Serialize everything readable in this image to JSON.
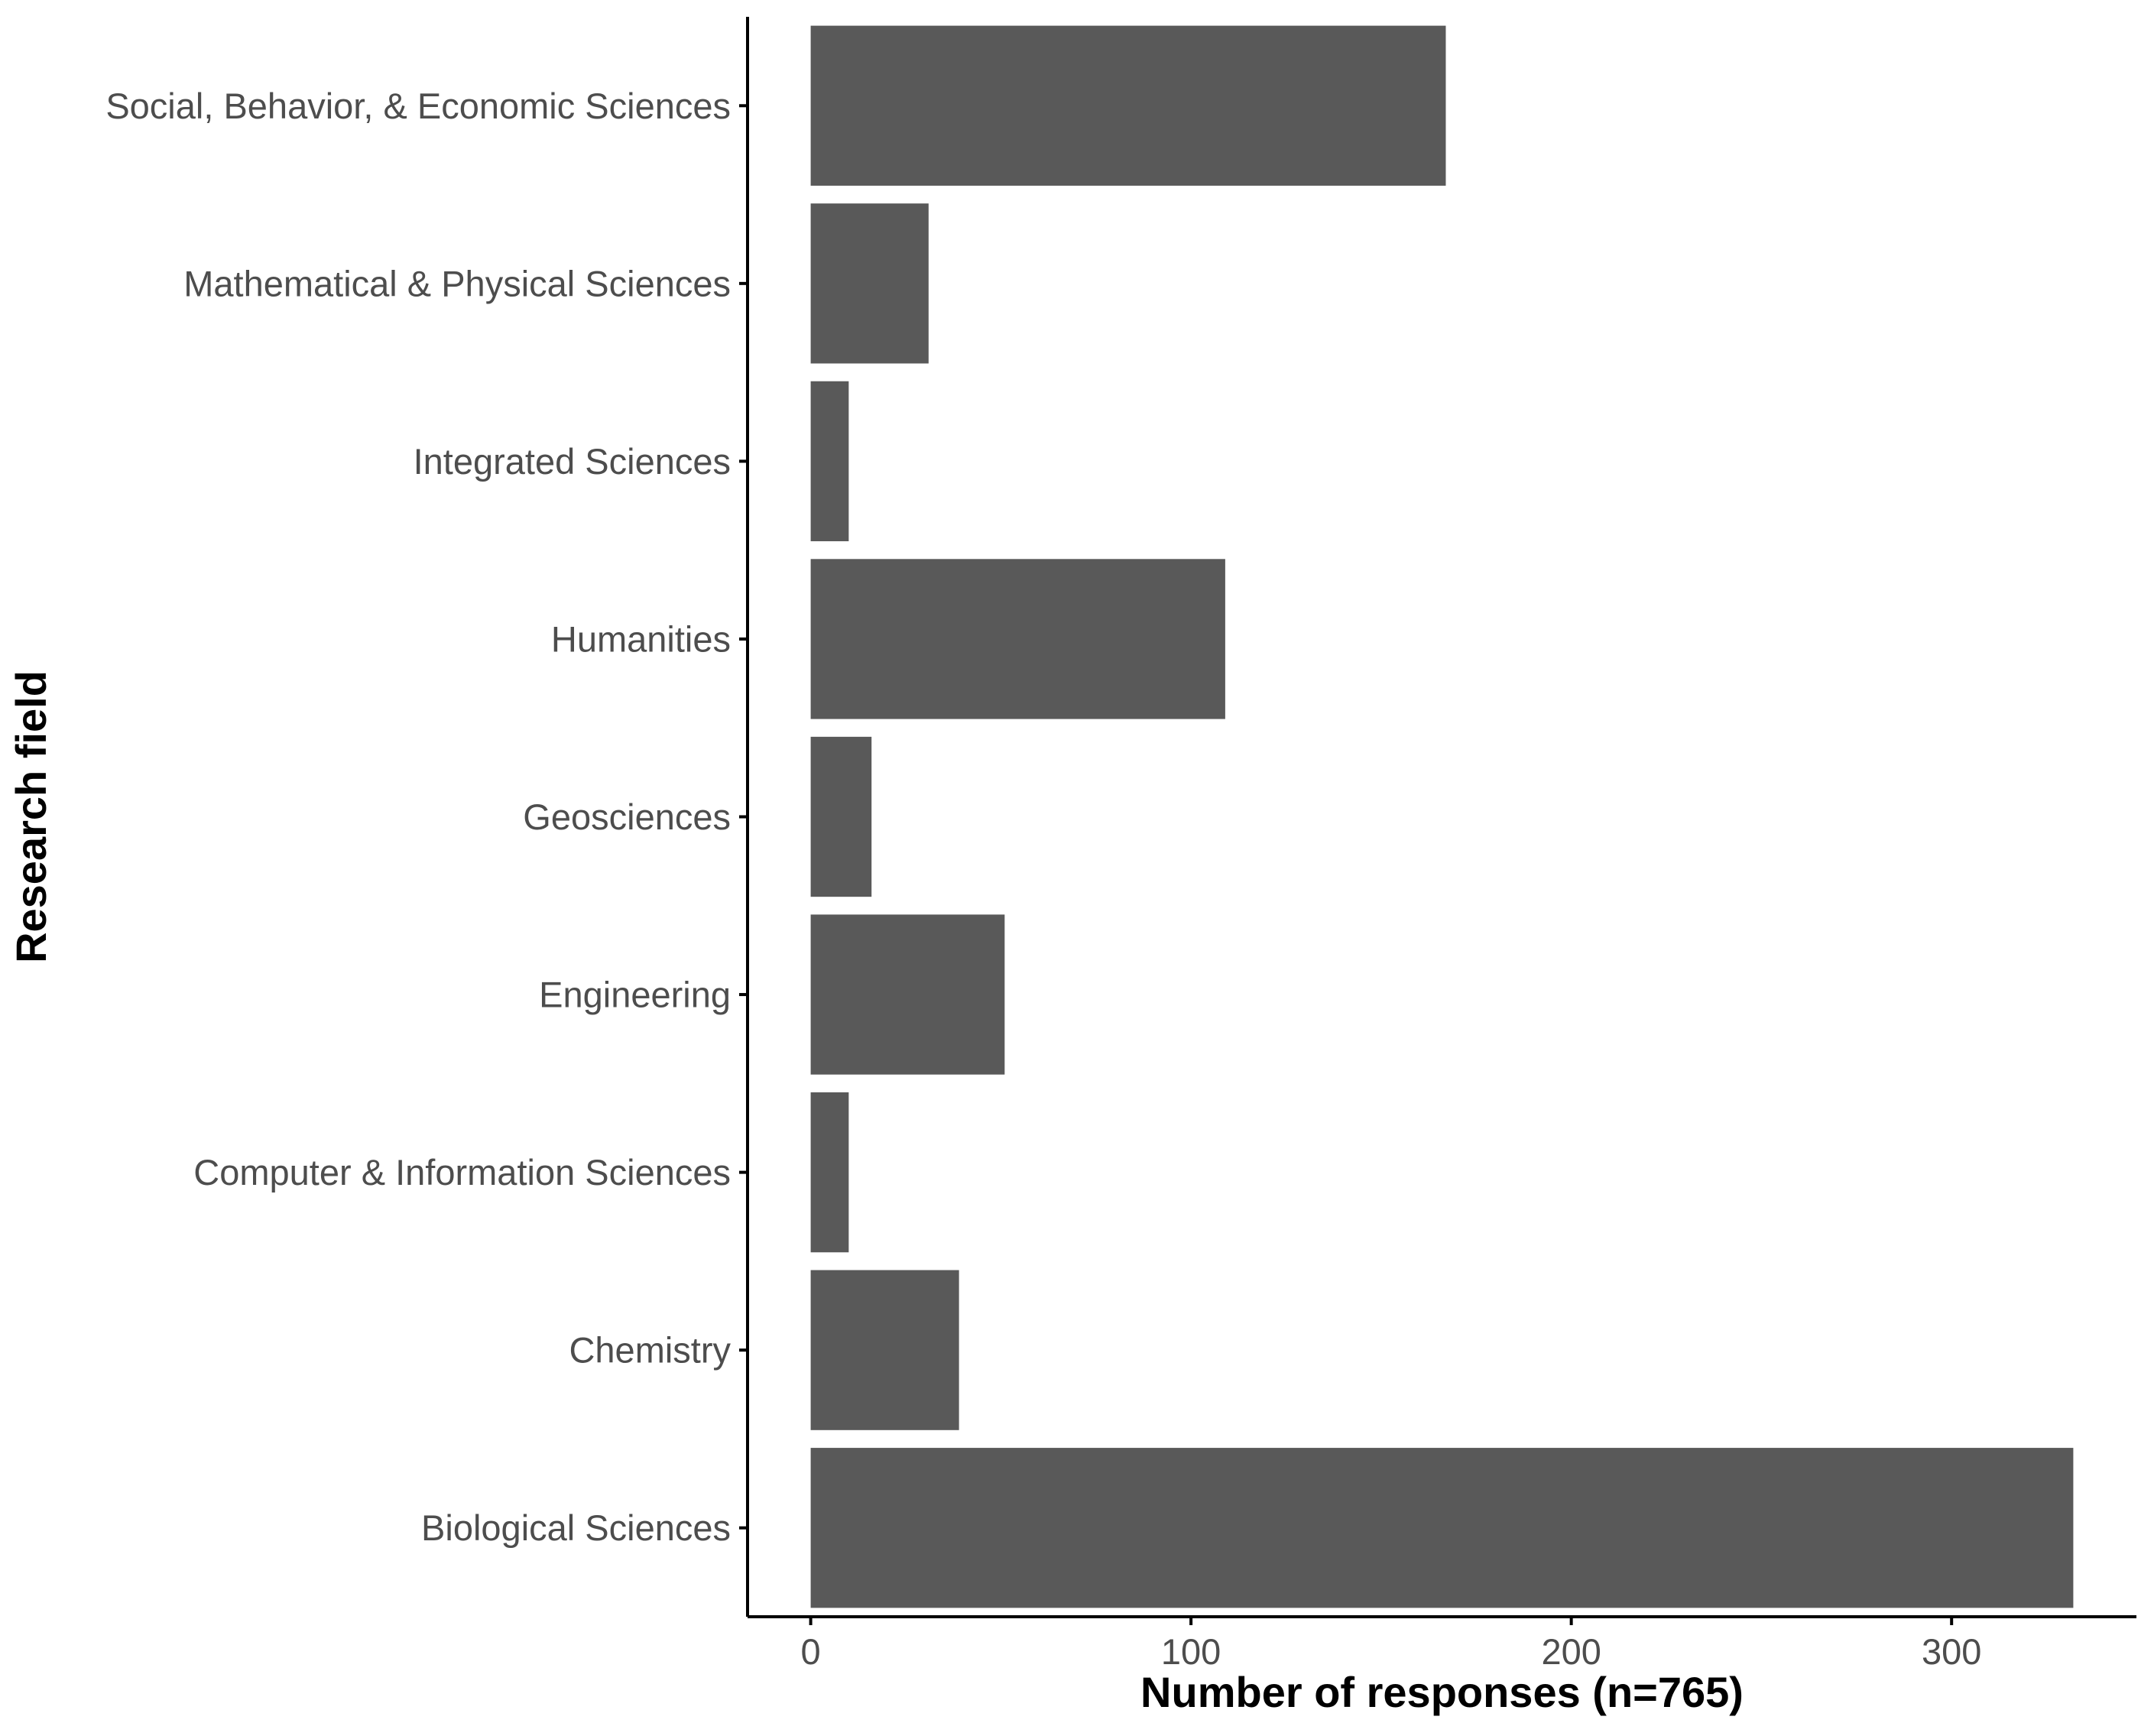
{
  "chart_data": {
    "type": "bar",
    "orientation": "horizontal",
    "categories": [
      "Social, Behavior, & Economic Sciences",
      "Mathematical & Physical Sciences",
      "Integrated Sciences",
      "Humanities",
      "Geosciences",
      "Engineering",
      "Computer & Information Sciences",
      "Chemistry",
      "Biological Sciences"
    ],
    "values": [
      167,
      31,
      10,
      109,
      16,
      51,
      10,
      39,
      332
    ],
    "xlabel": "Number of responses (n=765)",
    "ylabel": "Research field",
    "xlim": [
      -16.6,
      348.6
    ],
    "xticks": [
      0,
      100,
      200,
      300
    ],
    "xtick_labels": [
      "0",
      "100",
      "200",
      "300"
    ],
    "grid": false,
    "legend": "none",
    "colors": {
      "bar": "#595959",
      "axis": "#000000",
      "tick_label": "#4d4d4d"
    }
  }
}
